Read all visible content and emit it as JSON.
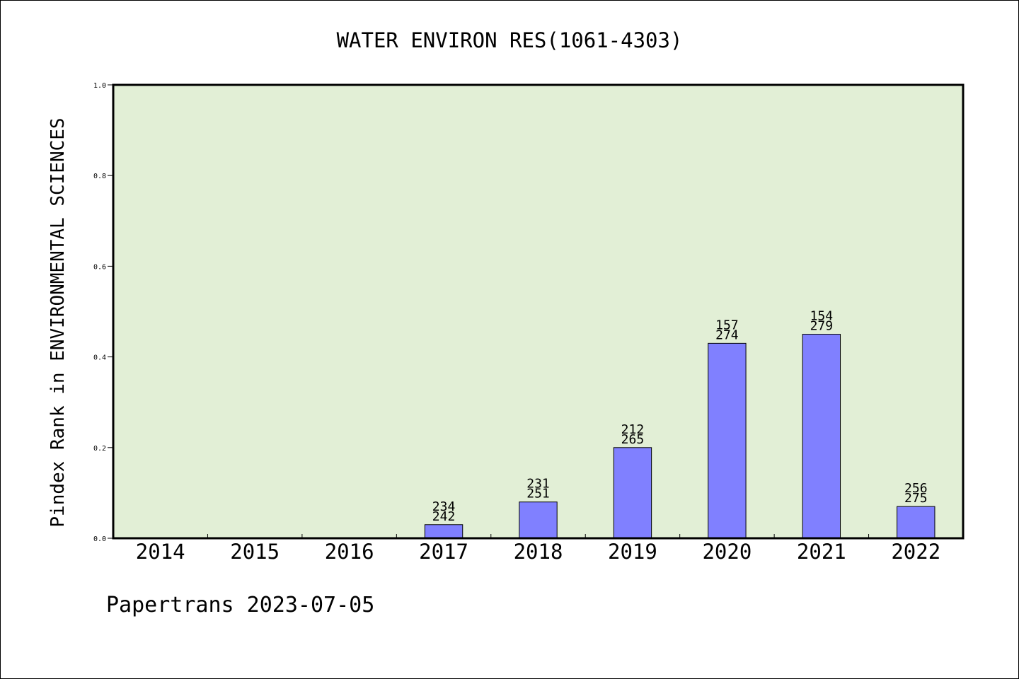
{
  "chart_data": {
    "type": "bar",
    "title": "WATER ENVIRON RES(1061-4303)",
    "xlabel": "",
    "ylabel": "Pindex Rank in ENVIRONMENTAL SCIENCES",
    "ylim": [
      0,
      1.0
    ],
    "yticks": [
      "0.0",
      "0.2",
      "0.4",
      "0.6",
      "0.8",
      "1.0"
    ],
    "categories": [
      "2014",
      "2015",
      "2016",
      "2017",
      "2018",
      "2019",
      "2020",
      "2021",
      "2022"
    ],
    "values": [
      0,
      0,
      0,
      0.03,
      0.08,
      0.2,
      0.43,
      0.45,
      0.07
    ],
    "bar_labels": [
      null,
      null,
      null,
      {
        "top": "234",
        "bottom": "242"
      },
      {
        "top": "231",
        "bottom": "251"
      },
      {
        "top": "212",
        "bottom": "265"
      },
      {
        "top": "157",
        "bottom": "274"
      },
      {
        "top": "154",
        "bottom": "279"
      },
      {
        "top": "256",
        "bottom": "275"
      }
    ],
    "colors": {
      "plot_background": "#e2efd6",
      "bar_fill": "#8080ff",
      "bar_stroke": "#000000"
    },
    "grid": false,
    "legend": "none"
  },
  "footer": "Papertrans 2023-07-05"
}
